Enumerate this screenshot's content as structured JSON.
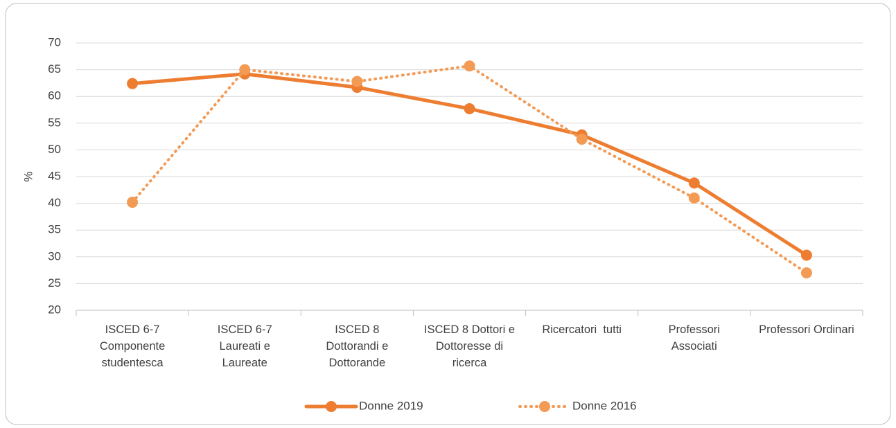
{
  "chart_data": {
    "type": "line",
    "categories": [
      "ISCED 6-7 Componente studentesca",
      "ISCED 6-7 Laureati e Laureate",
      "ISCED 8 Dottorandi e Dottorande",
      "ISCED 8 Dottori e Dottoresse di ricerca",
      "Ricercatori  tutti",
      "Professori Associati",
      "Professori Ordinari"
    ],
    "y_label": "%",
    "series": [
      {
        "name": "Donne 2019",
        "color": "#ED7D31",
        "dash": "solid",
        "values": [
          62.4,
          64.2,
          61.7,
          57.7,
          52.8,
          43.8,
          30.3
        ]
      },
      {
        "name": "Donne 2016",
        "color": "#F39A55",
        "dash": "dotted",
        "values": [
          40.2,
          65.0,
          62.8,
          65.7,
          52.0,
          41.0,
          27.0
        ]
      }
    ],
    "ylim": [
      20,
      70
    ],
    "yticks": [
      20,
      25,
      30,
      35,
      40,
      45,
      50,
      55,
      60,
      65,
      70
    ],
    "grid": true,
    "legend": "bottom"
  }
}
